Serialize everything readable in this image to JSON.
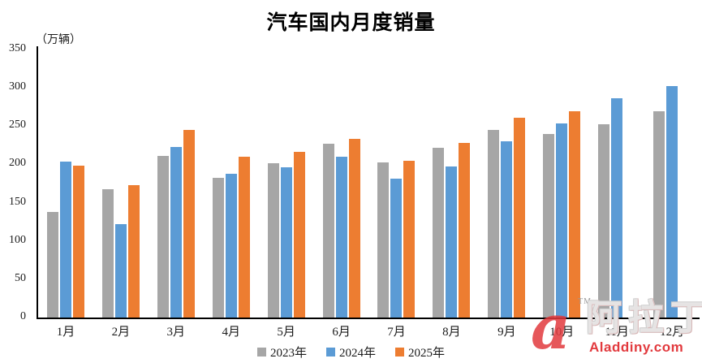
{
  "page": {
    "background": "#ffffff"
  },
  "chart_data": {
    "type": "bar",
    "title": "汽车国内月度销量",
    "unit_label": "（万辆）",
    "xlabel": "",
    "ylabel": "（万辆）",
    "ylim": [
      0,
      350
    ],
    "yticks": [
      350,
      300,
      250,
      200,
      150,
      100,
      50,
      0
    ],
    "grid": false,
    "legend_position": "bottom",
    "categories": [
      "1月",
      "2月",
      "3月",
      "4月",
      "5月",
      "6月",
      "7月",
      "8月",
      "9月",
      "10月",
      "11月",
      "12月"
    ],
    "series": [
      {
        "name": "2023年",
        "color": "#A6A6A6",
        "values": [
          136,
          166,
          209,
          180,
          199,
          224,
          200,
          219,
          242,
          237,
          249,
          266
        ]
      },
      {
        "name": "2024年",
        "color": "#5B9BD5",
        "values": [
          201,
          121,
          220,
          186,
          194,
          208,
          179,
          195,
          227,
          251,
          283,
          299
        ]
      },
      {
        "name": "2025年",
        "color": "#ED7D31",
        "values": [
          196,
          171,
          242,
          208,
          214,
          231,
          202,
          225,
          258,
          266,
          null,
          null
        ]
      }
    ],
    "axis_color": "#000000",
    "tick_label_color": "#1a1a1a"
  },
  "watermark": {
    "logo_letter": "a",
    "tm": "TM",
    "brand": "阿拉丁",
    "site": "Aladdiny.com",
    "accent_color": "#e23a3e"
  }
}
